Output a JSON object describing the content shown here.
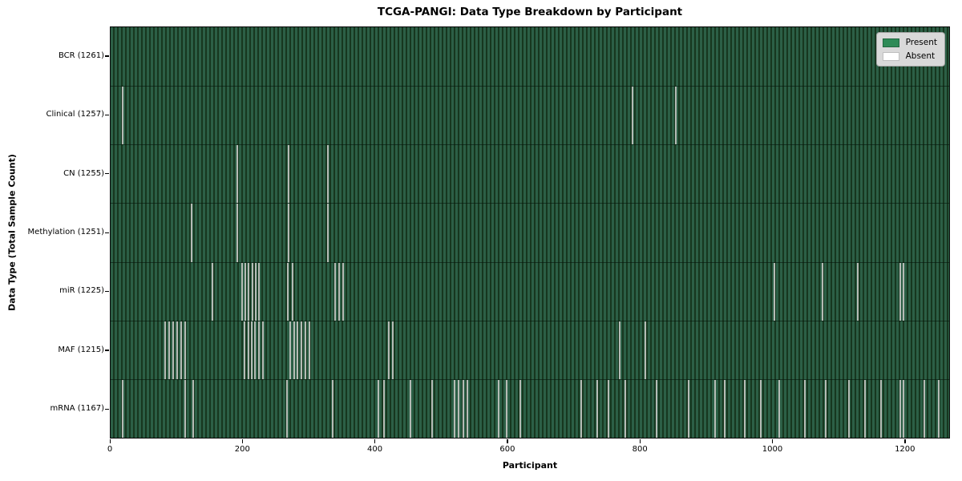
{
  "chart_data": {
    "type": "heatmap",
    "title": "TCGA-PANGI: Data Type Breakdown by Participant",
    "xlabel": "Participant",
    "ylabel": "Data Type (Total Sample Count)",
    "legend": {
      "present_label": "Present",
      "absent_label": "Absent",
      "present_color": "#2e8b57",
      "absent_color": "#ffffff",
      "position": "upper right"
    },
    "x_axis": {
      "ticks": [
        0,
        200,
        400,
        600,
        800,
        1000,
        1200
      ],
      "max": 1268
    },
    "grid": false,
    "colors": {
      "present_stripe": "#2c5f46",
      "stripe_gap": "#17371f",
      "absent_line": "#b5bbb5",
      "plot_border": "#0a0a0a",
      "legend_background": "#d9d9d9"
    },
    "rows": [
      {
        "data_type": "BCR",
        "label": "BCR (1261)",
        "present_count": 1261,
        "absent_participants": []
      },
      {
        "data_type": "Clinical",
        "label": "Clinical (1257)",
        "present_count": 1257,
        "absent_participants": [
          18,
          789,
          855
        ]
      },
      {
        "data_type": "CN",
        "label": "CN (1255)",
        "present_count": 1255,
        "absent_participants": [
          191,
          269,
          328
        ]
      },
      {
        "data_type": "Methylation",
        "label": "Methylation (1251)",
        "present_count": 1251,
        "absent_participants": [
          123,
          191,
          269,
          328
        ]
      },
      {
        "data_type": "miR",
        "label": "miR (1225)",
        "present_count": 1225,
        "absent_participants": [
          154,
          199,
          204,
          209,
          214,
          219,
          224,
          268,
          275,
          340,
          346,
          352,
          1004,
          1076,
          1130,
          1194,
          1199
        ]
      },
      {
        "data_type": "MAF",
        "label": "MAF (1215)",
        "present_count": 1215,
        "absent_participants": [
          83,
          89,
          95,
          101,
          107,
          113,
          203,
          208,
          213,
          218,
          224,
          230,
          271,
          277,
          283,
          289,
          295,
          301,
          421,
          427,
          770,
          809
        ]
      },
      {
        "data_type": "mRNA",
        "label": "mRNA (1167)",
        "present_count": 1167,
        "absent_participants": [
          18,
          113,
          125,
          267,
          336,
          405,
          413,
          453,
          486,
          520,
          526,
          533,
          540,
          587,
          599,
          620,
          711,
          736,
          753,
          778,
          826,
          874,
          914,
          928,
          959,
          983,
          1011,
          1050,
          1081,
          1117,
          1141,
          1165,
          1194,
          1199,
          1230,
          1252
        ]
      }
    ]
  }
}
